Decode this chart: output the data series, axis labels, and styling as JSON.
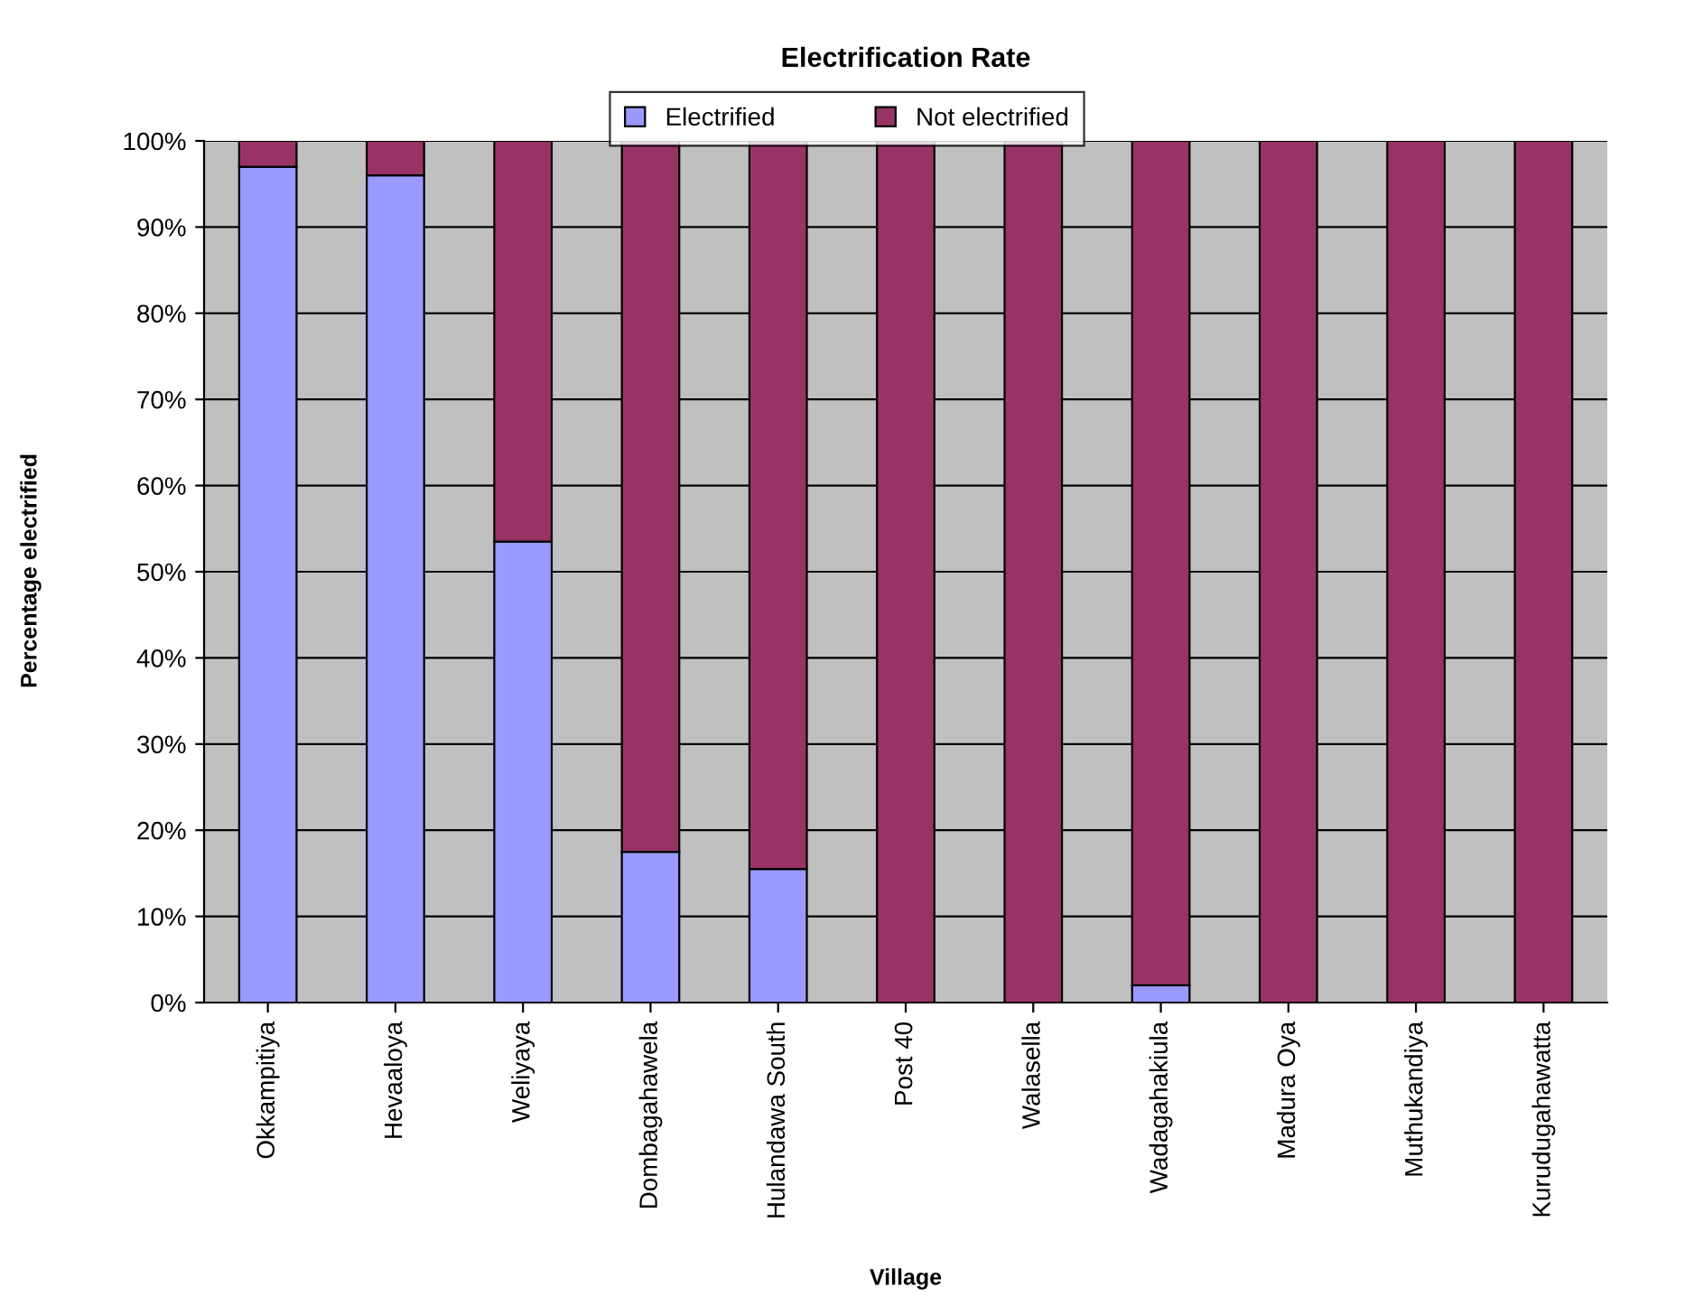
{
  "chart_data": {
    "type": "bar",
    "title": "Electrification Rate",
    "xlabel": "Village",
    "ylabel": "Percentage electrified",
    "categories": [
      "Okkampitiya",
      "Hevaaloya",
      "Weliyaya",
      "Dombagahawela",
      "Hulandawa South",
      "Post 40",
      "Walasella",
      "Wadagahakiula",
      "Madura Oya",
      "Muthukandiya",
      "Kurudugahawatta"
    ],
    "series": [
      {
        "name": "Electrified",
        "color": "#9999ff",
        "values": [
          97,
          96,
          53.5,
          17.5,
          15.5,
          0,
          0,
          2,
          0,
          0,
          0
        ]
      },
      {
        "name": "Not electrified",
        "color": "#993366",
        "values": [
          3,
          4,
          46.5,
          82.5,
          84.5,
          100,
          100,
          98,
          100,
          100,
          100
        ]
      }
    ],
    "stacked": true,
    "ylim": [
      0,
      100
    ],
    "yticks": [
      {
        "value": 0,
        "label": "0%"
      },
      {
        "value": 10,
        "label": "10%"
      },
      {
        "value": 20,
        "label": "20%"
      },
      {
        "value": 30,
        "label": "30%"
      },
      {
        "value": 40,
        "label": "40%"
      },
      {
        "value": 50,
        "label": "50%"
      },
      {
        "value": 60,
        "label": "60%"
      },
      {
        "value": 70,
        "label": "70%"
      },
      {
        "value": 80,
        "label": "80%"
      },
      {
        "value": 90,
        "label": "90%"
      },
      {
        "value": 100,
        "label": "100%"
      }
    ],
    "grid": "y",
    "legend": "top"
  }
}
